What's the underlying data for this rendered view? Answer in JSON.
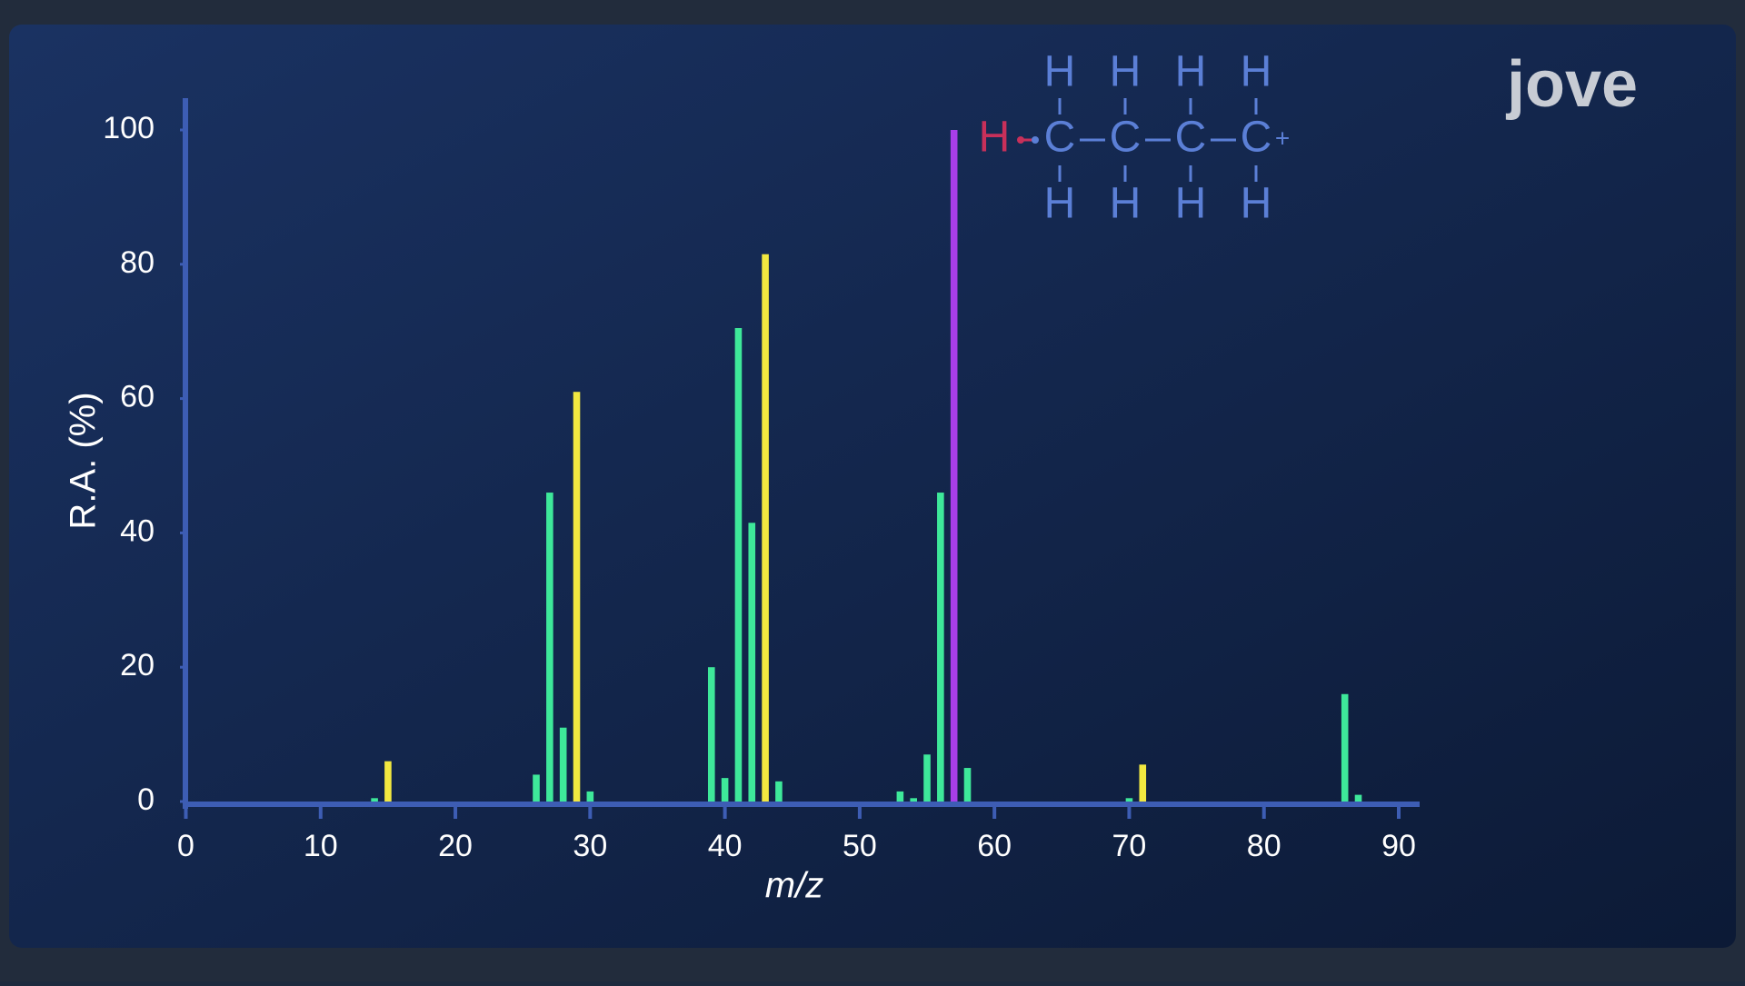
{
  "chart_data": {
    "type": "bar",
    "xlabel": "m/z",
    "ylabel": "R.A. (%)",
    "xlim": [
      0,
      90
    ],
    "ylim": [
      0,
      100
    ],
    "xticks": [
      0,
      10,
      20,
      30,
      40,
      50,
      60,
      70,
      80,
      90
    ],
    "yticks": [
      0,
      20,
      40,
      60,
      80,
      100
    ],
    "series": [
      {
        "color": "#3ee89a",
        "x": [
          14,
          26,
          27,
          28,
          30,
          39,
          40,
          41,
          42,
          44,
          53,
          54,
          55,
          56,
          58,
          70,
          86,
          87
        ],
        "values": [
          0.5,
          4,
          46,
          11,
          1.5,
          20,
          3.5,
          70.5,
          41.5,
          3,
          1.5,
          0.5,
          7,
          46,
          5,
          0.5,
          16,
          1
        ]
      },
      {
        "color": "#f2e840",
        "x": [
          15,
          29,
          43,
          71
        ],
        "values": [
          6,
          61,
          81.5,
          5.5
        ]
      },
      {
        "color": "#a83ee8",
        "x": [
          57
        ],
        "values": [
          100
        ]
      }
    ]
  },
  "structure": {
    "top_h": [
      "H",
      "H",
      "H",
      "H"
    ],
    "carbons": [
      "C",
      "C",
      "C",
      "C"
    ],
    "bottom_h": [
      "H",
      "H",
      "H",
      "H"
    ],
    "leaving_h": "H",
    "charge": "+"
  },
  "logo": "jove"
}
